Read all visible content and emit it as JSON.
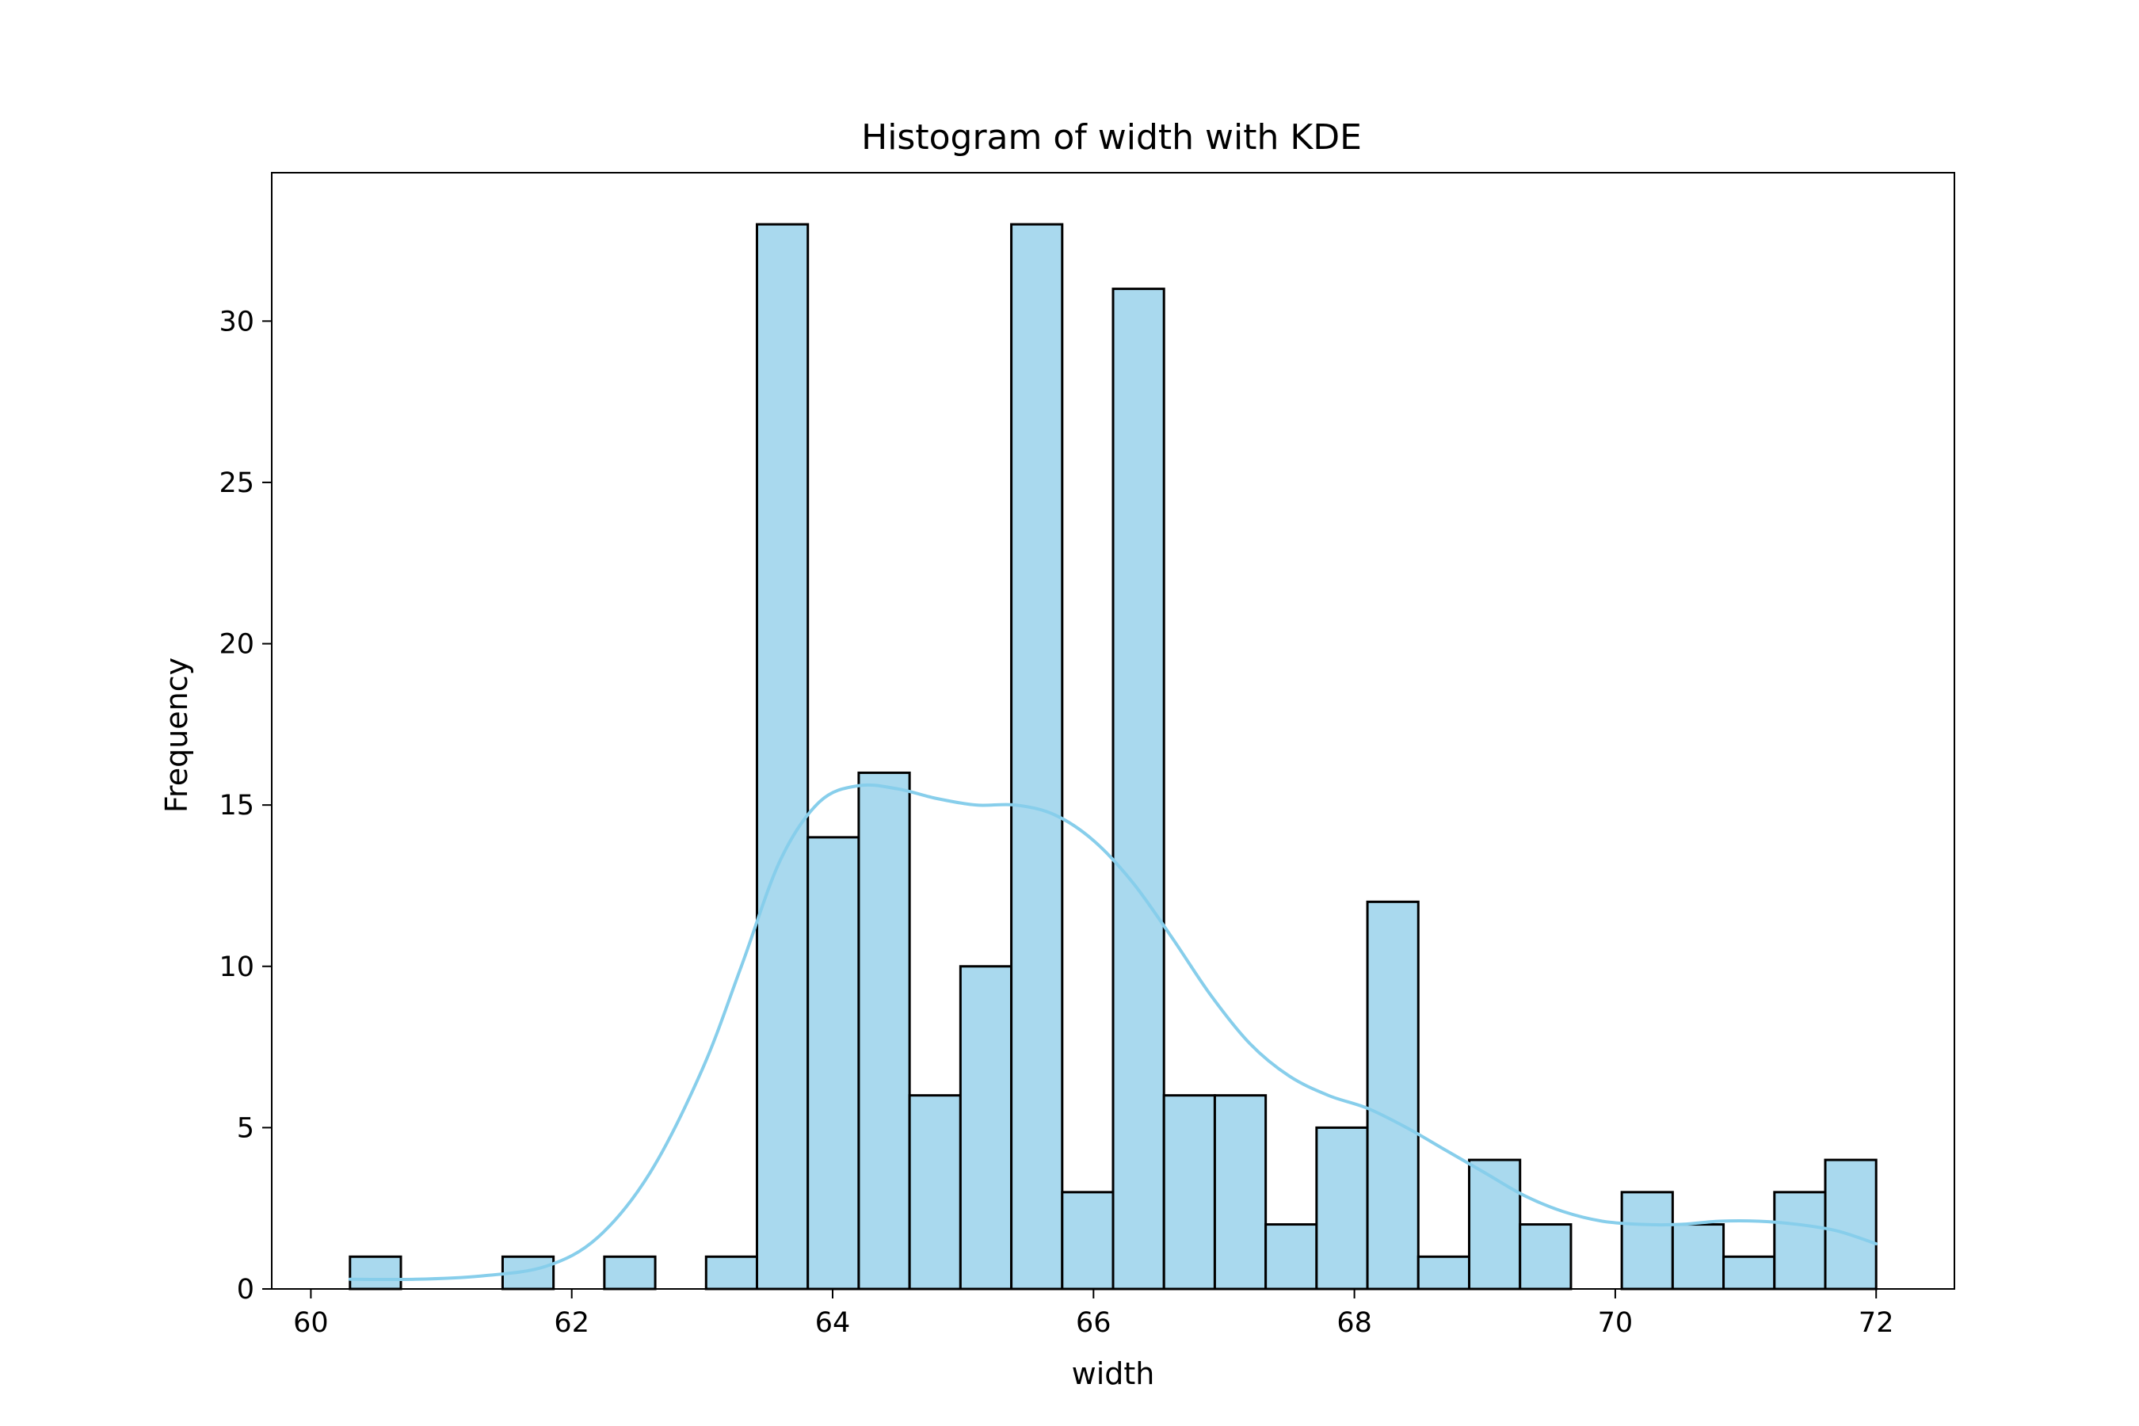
{
  "chart_data": {
    "type": "bar",
    "title": "Histogram of width with KDE",
    "xlabel": "width",
    "ylabel": "Frequency",
    "xlim": [
      59.7,
      72.6
    ],
    "ylim": [
      0,
      34.6
    ],
    "xticks": [
      60,
      62,
      64,
      66,
      68,
      70,
      72
    ],
    "yticks": [
      0,
      5,
      10,
      15,
      20,
      25,
      30
    ],
    "grid": false,
    "bar_color": "#a9d9ee",
    "bar_edge_color": "#000000",
    "kde_color": "#87ceeb",
    "bins": {
      "start": 60.3,
      "width": 0.39,
      "counts": [
        1,
        0,
        0,
        1,
        0,
        1,
        0,
        1,
        33,
        14,
        16,
        6,
        10,
        33,
        3,
        31,
        6,
        6,
        2,
        5,
        12,
        1,
        4,
        2,
        0,
        3,
        2,
        1,
        3,
        4
      ]
    },
    "kde": {
      "x": [
        60.3,
        60.8,
        61.3,
        61.8,
        62.2,
        62.6,
        63.0,
        63.3,
        63.6,
        63.9,
        64.2,
        64.5,
        64.8,
        65.1,
        65.4,
        65.7,
        66.0,
        66.3,
        66.6,
        66.9,
        67.2,
        67.5,
        67.8,
        68.1,
        68.4,
        68.7,
        69.0,
        69.3,
        69.6,
        69.9,
        70.2,
        70.5,
        70.8,
        71.1,
        71.4,
        71.7,
        72.0
      ],
      "y": [
        0.3,
        0.3,
        0.4,
        0.7,
        1.6,
        3.6,
        6.8,
        10.0,
        13.3,
        15.1,
        15.6,
        15.5,
        15.2,
        15.0,
        15.0,
        14.7,
        13.9,
        12.6,
        10.9,
        9.1,
        7.6,
        6.6,
        6.0,
        5.6,
        5.0,
        4.3,
        3.6,
        2.9,
        2.4,
        2.1,
        2.0,
        2.0,
        2.1,
        2.1,
        2.0,
        1.8,
        1.4
      ]
    }
  }
}
